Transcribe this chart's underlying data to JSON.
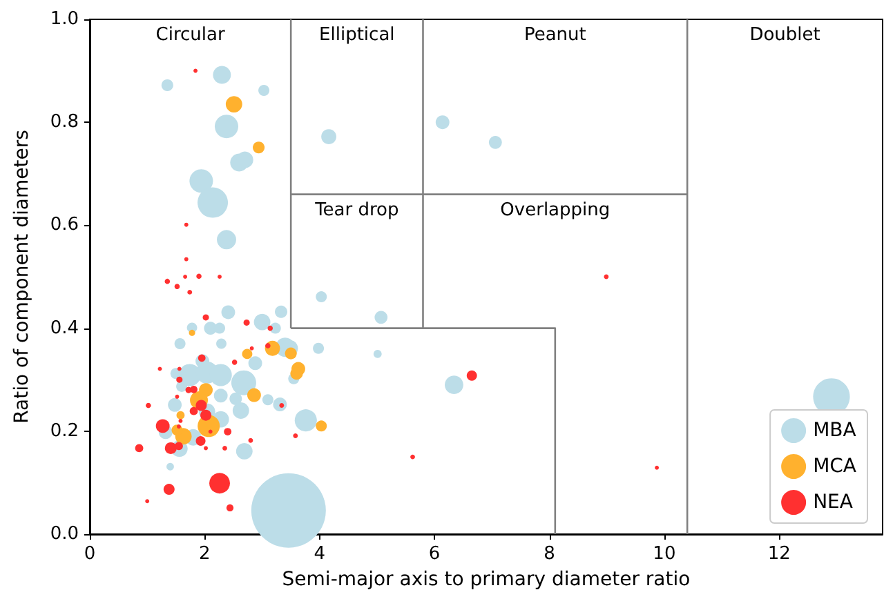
{
  "chart_data": {
    "type": "bubble",
    "xlabel": "Semi-major axis to primary diameter ratio",
    "ylabel": "Ratio of component diameters",
    "xlim": [
      0,
      13.8
    ],
    "xticks": [
      0,
      2,
      4,
      6,
      8,
      10,
      12
    ],
    "ylim": [
      0,
      1.0
    ],
    "yticks": [
      {
        "value": 0,
        "label": "0.0"
      },
      {
        "value": 0.2,
        "label": "0.2"
      },
      {
        "value": 0.4,
        "label": "0.4"
      },
      {
        "value": 0.6,
        "label": "0.6"
      },
      {
        "value": 0.8,
        "label": "0.8"
      },
      {
        "value": 1.0,
        "label": "1.0"
      }
    ],
    "grid": false,
    "legend": "bottom right",
    "marker": "circle",
    "annotations": [
      "Circular",
      "Elliptical",
      "Peanut",
      "Doublet",
      "Tear drop",
      "Overlapping"
    ],
    "series": [
      {
        "name": "MBA",
        "color": "#bcdde8",
        "x": [
          1.35,
          2.3,
          3.03,
          2.38,
          2.6,
          2.7,
          1.94,
          2.14,
          2.38,
          4.16,
          6.14,
          7.06,
          4.03,
          5.07,
          3.33,
          3.98,
          5.01,
          6.34,
          3.76,
          12.91,
          3.46,
          3.48,
          3.31,
          2.41,
          3.0,
          1.78,
          2.1,
          2.26,
          3.23,
          1.57,
          2.29,
          3.4,
          2.88,
          3.55,
          1.74,
          2.04,
          2.28,
          2.68,
          1.5,
          1.6,
          1.48,
          2.54,
          2.63,
          2.28,
          3.1,
          1.56,
          1.4,
          2.69,
          1.32,
          2.04,
          1.8,
          1.96,
          2.28
        ],
        "values": [
          0.872,
          0.892,
          0.862,
          0.792,
          0.722,
          0.727,
          0.686,
          0.644,
          0.572,
          0.772,
          0.8,
          0.761,
          0.461,
          0.421,
          0.432,
          0.361,
          0.35,
          0.29,
          0.221,
          0.267,
          0.046,
          0.361,
          0.252,
          0.431,
          0.412,
          0.401,
          0.4,
          0.4,
          0.4,
          0.37,
          0.37,
          0.363,
          0.332,
          0.302,
          0.309,
          0.314,
          0.309,
          0.294,
          0.312,
          0.287,
          0.251,
          0.263,
          0.24,
          0.223,
          0.261,
          0.166,
          0.131,
          0.161,
          0.198,
          0.238,
          0.188,
          0.336,
          0.269
        ],
        "sizes": [
          0.025,
          0.058,
          0.022,
          0.099,
          0.058,
          0.05,
          0.099,
          0.166,
          0.067,
          0.041,
          0.034,
          0.03,
          0.022,
          0.03,
          0.028,
          0.022,
          0.012,
          0.062,
          0.088,
          0.243,
          1,
          0.049,
          0.034,
          0.034,
          0.049,
          0.019,
          0.03,
          0.022,
          0.022,
          0.022,
          0.019,
          0.067,
          0.034,
          0.022,
          0.088,
          0.088,
          0.088,
          0.111,
          0.022,
          0.022,
          0.034,
          0.028,
          0.049,
          0.049,
          0.022,
          0.049,
          0.01,
          0.049,
          0.034,
          0.049,
          0.049,
          0.034,
          0.034
        ]
      },
      {
        "name": "MCA",
        "color": "#ffb12e",
        "x": [
          2.51,
          2.94,
          3.63,
          3.6,
          3.5,
          4.03,
          1.78,
          3.18,
          2.74,
          2.02,
          1.9,
          2.86,
          1.58,
          2.07,
          1.63,
          1.52
        ],
        "values": [
          0.835,
          0.751,
          0.321,
          0.312,
          0.351,
          0.21,
          0.391,
          0.361,
          0.35,
          0.28,
          0.26,
          0.27,
          0.231,
          0.21,
          0.19,
          0.202
        ],
        "sizes": [
          0.049,
          0.025,
          0.034,
          0.028,
          0.025,
          0.022,
          0.007,
          0.041,
          0.019,
          0.034,
          0.058,
          0.034,
          0.012,
          0.088,
          0.049,
          0.022
        ]
      },
      {
        "name": "NEA",
        "color": "#ff3030",
        "x": [
          1.84,
          1.68,
          1.68,
          8.99,
          6.65,
          3.58,
          5.62,
          9.87,
          3.34,
          1.35,
          1.52,
          1.66,
          1.9,
          2.26,
          1.74,
          2.02,
          2.73,
          3.14,
          3.1,
          2.82,
          1.95,
          2.52,
          1.22,
          1.56,
          1.56,
          1.72,
          1.81,
          1.52,
          1.94,
          1.81,
          2.02,
          1.58,
          1.02,
          1.27,
          1.55,
          2.1,
          2.4,
          1.93,
          1.41,
          1.55,
          2.02,
          2.35,
          2.8,
          0.86,
          1.38,
          2.26,
          1.0,
          2.44
        ],
        "values": [
          0.9,
          0.601,
          0.534,
          0.5,
          0.308,
          0.191,
          0.15,
          0.129,
          0.25,
          0.491,
          0.481,
          0.5,
          0.501,
          0.5,
          0.47,
          0.421,
          0.411,
          0.4,
          0.366,
          0.361,
          0.342,
          0.334,
          0.321,
          0.3,
          0.321,
          0.28,
          0.281,
          0.267,
          0.25,
          0.239,
          0.231,
          0.22,
          0.25,
          0.21,
          0.209,
          0.199,
          0.199,
          0.181,
          0.167,
          0.171,
          0.167,
          0.167,
          0.182,
          0.167,
          0.087,
          0.099,
          0.064,
          0.051
        ],
        "sizes": [
          0.003,
          0.003,
          0.003,
          0.004,
          0.019,
          0.004,
          0.004,
          0.003,
          0.004,
          0.005,
          0.005,
          0.003,
          0.005,
          0.003,
          0.004,
          0.007,
          0.007,
          0.005,
          0.005,
          0.003,
          0.01,
          0.005,
          0.003,
          0.007,
          0.003,
          0.007,
          0.01,
          0.003,
          0.022,
          0.012,
          0.022,
          0.003,
          0.005,
          0.034,
          0.003,
          0.003,
          0.01,
          0.017,
          0.025,
          0.012,
          0.003,
          0.004,
          0.004,
          0.012,
          0.022,
          0.077,
          0.003,
          0.009
        ]
      },
      {
        "type": "line",
        "color": "#808080",
        "marker": "none",
        "x": [
          3.5,
          3.5
        ],
        "values": [
          0.4,
          1.0
        ]
      },
      {
        "type": "line",
        "color": "#808080",
        "marker": "none",
        "x": [
          5.8,
          5.8
        ],
        "values": [
          0.4,
          1.0
        ]
      },
      {
        "type": "line",
        "color": "#808080",
        "marker": "none",
        "x": [
          10.4,
          10.4
        ],
        "values": [
          0,
          1.0
        ]
      },
      {
        "type": "line",
        "color": "#808080",
        "marker": "none",
        "x": [
          3.5,
          10.4
        ],
        "values": [
          0.66,
          0.66
        ]
      },
      {
        "type": "line",
        "color": "#808080",
        "marker": "none",
        "x": [
          3.5,
          8.1,
          8.1
        ],
        "values": [
          0.4,
          0.4,
          0
        ]
      }
    ]
  }
}
